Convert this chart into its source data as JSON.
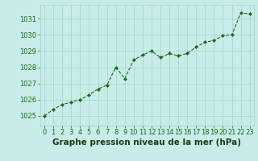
{
  "x": [
    0,
    1,
    2,
    3,
    4,
    5,
    6,
    7,
    8,
    9,
    10,
    11,
    12,
    13,
    14,
    15,
    16,
    17,
    18,
    19,
    20,
    21,
    22,
    23
  ],
  "y": [
    1025.0,
    1025.4,
    1025.7,
    1025.85,
    1026.0,
    1026.3,
    1026.65,
    1026.9,
    1028.0,
    1027.3,
    1028.45,
    1028.75,
    1029.0,
    1028.6,
    1028.85,
    1028.7,
    1028.85,
    1029.25,
    1029.55,
    1029.65,
    1029.95,
    1030.0,
    1031.35,
    1031.3
  ],
  "line_color": "#1a6b1a",
  "marker_color": "#1a6b1a",
  "bg_color": "#c8ede8",
  "grid_color": "#9dd4cc",
  "title": "Graphe pression niveau de la mer (hPa)",
  "ylim_min": 1024.4,
  "ylim_max": 1031.85,
  "yticks": [
    1025,
    1026,
    1027,
    1028,
    1029,
    1030,
    1031
  ],
  "xticks": [
    0,
    1,
    2,
    3,
    4,
    5,
    6,
    7,
    8,
    9,
    10,
    11,
    12,
    13,
    14,
    15,
    16,
    17,
    18,
    19,
    20,
    21,
    22,
    23
  ],
  "title_fontsize": 7.5,
  "tick_fontsize": 6.0,
  "title_color": "#1a6b1a",
  "tick_color": "#1a6b1a",
  "label_bottom_color": "#1a3a1a"
}
